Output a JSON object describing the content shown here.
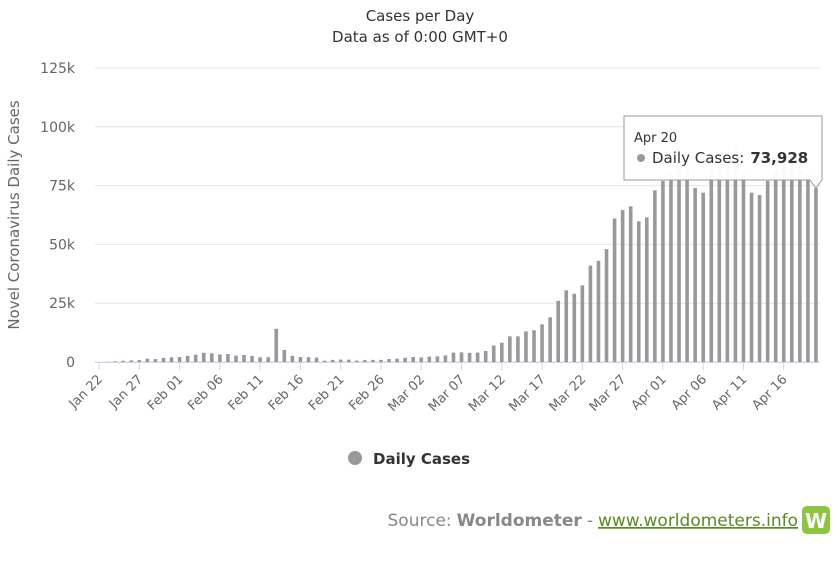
{
  "chart_data": {
    "type": "bar",
    "title": "Cases per Day",
    "subtitle": "Data as of 0:00 GMT+0",
    "y_label": "Novel Coronavirus Daily Cases",
    "categories": [
      "Jan 22",
      null,
      null,
      null,
      null,
      "Jan 27",
      null,
      null,
      null,
      null,
      "Feb 01",
      null,
      null,
      null,
      null,
      "Feb 06",
      null,
      null,
      null,
      null,
      "Feb 11",
      null,
      null,
      null,
      null,
      "Feb 16",
      null,
      null,
      null,
      null,
      "Feb 21",
      null,
      null,
      null,
      null,
      "Feb 26",
      null,
      null,
      null,
      null,
      "Mar 02",
      null,
      null,
      null,
      null,
      "Mar 07",
      null,
      null,
      null,
      null,
      "Mar 12",
      null,
      null,
      null,
      null,
      "Mar 17",
      null,
      null,
      null,
      null,
      "Mar 22",
      null,
      null,
      null,
      null,
      "Mar 27",
      null,
      null,
      null,
      null,
      "Apr 01",
      null,
      null,
      null,
      null,
      "Apr 06",
      null,
      null,
      null,
      null,
      "Apr 11",
      null,
      null,
      null,
      null,
      "Apr 16",
      null,
      null,
      null,
      null
    ],
    "series": [
      {
        "name": "Daily Cases",
        "color": "#999999",
        "values": [
          0,
          100,
          290,
          500,
          680,
          810,
          1400,
          1240,
          1750,
          2000,
          2100,
          2600,
          3100,
          3900,
          3700,
          3200,
          3400,
          2700,
          3000,
          2600,
          2000,
          2050,
          14100,
          5100,
          2650,
          2100,
          2050,
          1880,
          550,
          900,
          1030,
          1000,
          600,
          800,
          900,
          900,
          1300,
          1400,
          1800,
          2100,
          1900,
          2300,
          2400,
          2800,
          4000,
          4100,
          3900,
          4000,
          4700,
          7000,
          8200,
          10900,
          10900,
          13000,
          13500,
          16000,
          19000,
          26000,
          30500,
          29000,
          32600,
          41000,
          43000,
          48000,
          61000,
          64600,
          66200,
          59800,
          61500,
          73000,
          77000,
          80000,
          82000,
          84000,
          74000,
          72000,
          82000,
          86000,
          89000,
          92000,
          80000,
          72000,
          71000,
          77000,
          81000,
          86000,
          86000,
          82000,
          80000,
          73928
        ]
      }
    ],
    "ylim": [
      0,
      125000
    ],
    "yticks": [
      0,
      {
        "value": 25000,
        "label": "25k"
      },
      {
        "value": 50000,
        "label": "50k"
      },
      {
        "value": 75000,
        "label": "75k"
      },
      {
        "value": 100000,
        "label": "100k"
      },
      {
        "value": 125000,
        "label": "125k"
      }
    ],
    "grid": true,
    "tooltip": {
      "x": "Apr 20",
      "series_label": "Daily Cases:",
      "value_label": "73,928"
    },
    "source": {
      "prefix": "Source:",
      "name": "Worldometer",
      "separator": "-",
      "link": "www.worldometers.info",
      "logo": "W"
    }
  }
}
